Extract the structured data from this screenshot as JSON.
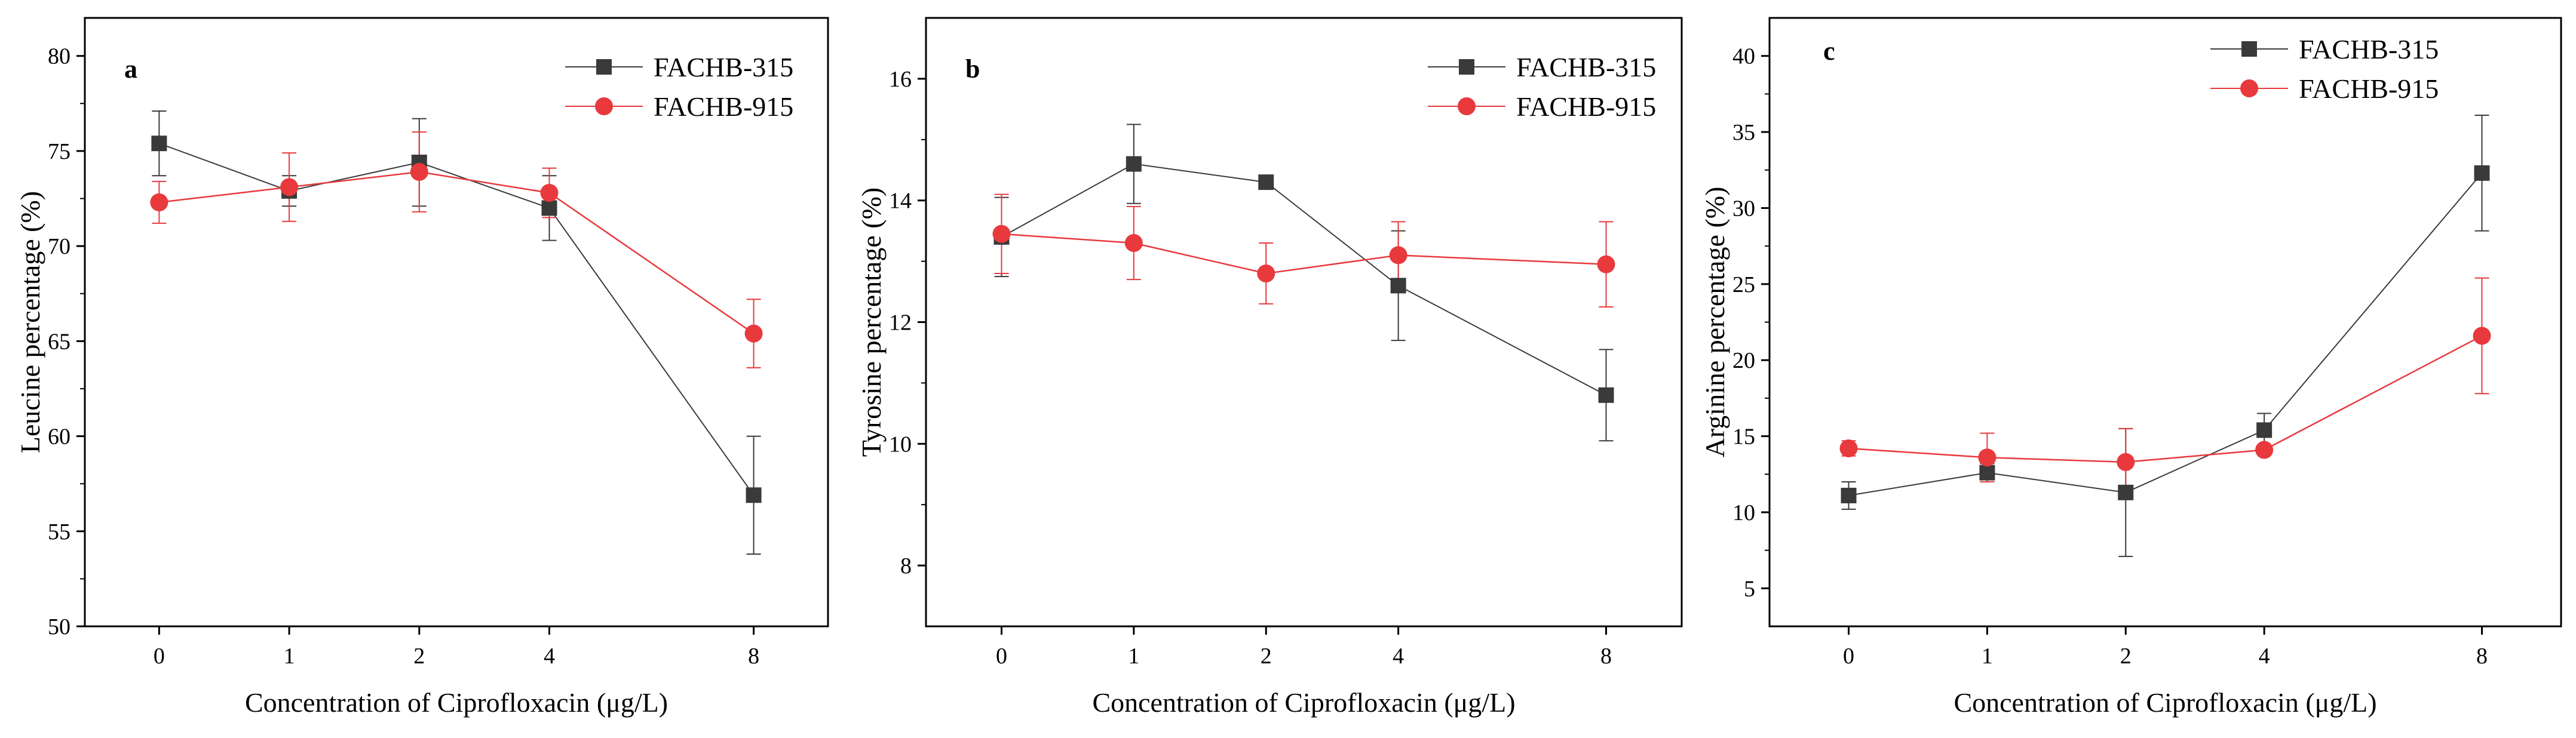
{
  "colors": {
    "series1": "#3a3a3a",
    "series2": "#e8393d",
    "axis": "#000000"
  },
  "chart_data": [
    {
      "type": "line",
      "panel": "a",
      "categories": [
        "0",
        "1",
        "2",
        "4",
        "8"
      ],
      "xlabel": "Concentration of Ciprofloxacin (μg/L)",
      "ylabel": "Leucine percentage (%)",
      "ylim": [
        50,
        82
      ],
      "yticks": [
        50,
        55,
        60,
        65,
        70,
        75,
        80
      ],
      "legend_position": "top-right",
      "series": [
        {
          "name": "FACHB-315",
          "marker": "square",
          "values": [
            75.4,
            72.9,
            74.4,
            72.0,
            56.9
          ],
          "errors": [
            1.7,
            0.8,
            2.3,
            1.7,
            3.1
          ]
        },
        {
          "name": "FACHB-915",
          "marker": "circle",
          "values": [
            72.3,
            73.1,
            73.9,
            72.8,
            65.4
          ],
          "errors": [
            1.1,
            1.8,
            2.1,
            1.3,
            1.8
          ]
        }
      ]
    },
    {
      "type": "line",
      "panel": "b",
      "categories": [
        "0",
        "1",
        "2",
        "4",
        "8"
      ],
      "xlabel": "Concentration of Ciprofloxacin (μg/L)",
      "ylabel": "Tyrosine percentage (%)",
      "ylim": [
        7,
        17
      ],
      "yticks": [
        8,
        10,
        12,
        14,
        16
      ],
      "legend_position": "top-right",
      "series": [
        {
          "name": "FACHB-315",
          "marker": "square",
          "values": [
            13.4,
            14.6,
            14.3,
            12.6,
            10.8
          ],
          "errors": [
            0.65,
            0.65,
            0.05,
            0.9,
            0.75
          ]
        },
        {
          "name": "FACHB-915",
          "marker": "circle",
          "values": [
            13.45,
            13.3,
            12.8,
            13.1,
            12.95
          ],
          "errors": [
            0.65,
            0.6,
            0.5,
            0.55,
            0.7
          ]
        }
      ]
    },
    {
      "type": "line",
      "panel": "c",
      "categories": [
        "0",
        "1",
        "2",
        "4",
        "8"
      ],
      "xlabel": "Concentration of Ciprofloxacin (μg/L)",
      "ylabel": "Arginine percentage (%)",
      "ylim": [
        2.5,
        42.5
      ],
      "yticks": [
        5,
        10,
        15,
        20,
        25,
        30,
        35,
        40
      ],
      "legend_position": "top-right",
      "series": [
        {
          "name": "FACHB-315",
          "marker": "square",
          "values": [
            11.1,
            12.6,
            11.3,
            15.4,
            32.3
          ],
          "errors": [
            0.9,
            0.6,
            4.2,
            1.1,
            3.8
          ]
        },
        {
          "name": "FACHB-915",
          "marker": "circle",
          "values": [
            14.2,
            13.6,
            13.3,
            14.1,
            21.6
          ],
          "errors": [
            0.5,
            1.6,
            2.2,
            0.3,
            3.8
          ]
        }
      ]
    }
  ]
}
